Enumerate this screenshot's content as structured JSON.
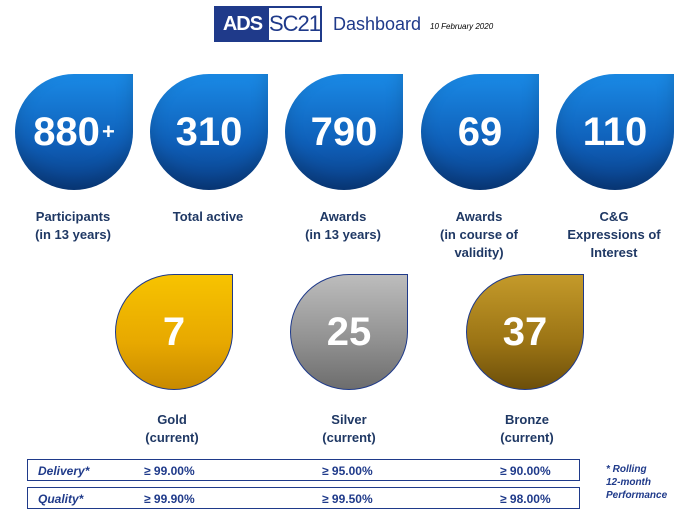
{
  "header": {
    "logo_ads": "ADS",
    "logo_sc": "SC21",
    "title": "Dashboard",
    "date": "10 February 2020"
  },
  "stats": [
    {
      "value": "880",
      "suffix": "+",
      "label": "Participants\n(in 13 years)"
    },
    {
      "value": "310",
      "suffix": "",
      "label": "Total active"
    },
    {
      "value": "790",
      "suffix": "",
      "label": "Awards\n(in 13 years)"
    },
    {
      "value": "69",
      "suffix": "",
      "label": "Awards\n(in course of\nvalidity)"
    },
    {
      "value": "110",
      "suffix": "",
      "label": "C&G\nExpressions of\nInterest"
    }
  ],
  "medals": [
    {
      "value": "7",
      "label": "Gold\n(current)"
    },
    {
      "value": "25",
      "label": "Silver\n(current)"
    },
    {
      "value": "37",
      "label": "Bronze\n(current)"
    }
  ],
  "performance": [
    {
      "name": "Delivery*",
      "gold": "≥ 99.00%",
      "silver": "≥ 95.00%",
      "bronze": "≥ 90.00%"
    },
    {
      "name": "Quality*",
      "gold": "≥ 99.90%",
      "silver": "≥ 99.50%",
      "bronze": "≥ 98.00%"
    }
  ],
  "footnote": "* Rolling\n12-month\nPerformance",
  "colors": {
    "blue_drop": "#0f5fb8",
    "gold_drop": "#e7a800",
    "silver_drop": "#8f8f8f",
    "bronze_drop": "#9a7314",
    "text": "#1f3864"
  }
}
